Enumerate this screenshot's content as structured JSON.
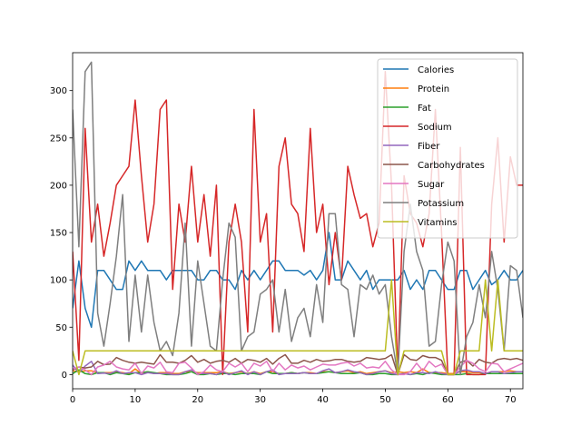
{
  "chart_data": {
    "type": "line",
    "title": "",
    "xlabel": "",
    "ylabel": "",
    "xlim": [
      0,
      72
    ],
    "ylim": [
      -15,
      340
    ],
    "xticks": [
      0,
      10,
      20,
      30,
      40,
      50,
      60,
      70
    ],
    "yticks": [
      0,
      50,
      100,
      150,
      200,
      250,
      300
    ],
    "grid": false,
    "legend_position": "top-right",
    "x": [
      0,
      1,
      2,
      3,
      4,
      5,
      6,
      7,
      8,
      9,
      10,
      11,
      12,
      13,
      14,
      15,
      16,
      17,
      18,
      19,
      20,
      21,
      22,
      23,
      24,
      25,
      26,
      27,
      28,
      29,
      30,
      31,
      32,
      33,
      34,
      35,
      36,
      37,
      38,
      39,
      40,
      41,
      42,
      43,
      44,
      45,
      46,
      47,
      48,
      49,
      50,
      51,
      52,
      53,
      54,
      55,
      56,
      57,
      58,
      59,
      60,
      61,
      62,
      63,
      64,
      65,
      66,
      67,
      68,
      69,
      70,
      71,
      72
    ],
    "series": [
      {
        "name": "Calories",
        "color": "#1f77b4",
        "values": [
          70,
          120,
          70,
          50,
          110,
          110,
          100,
          90,
          90,
          120,
          110,
          120,
          110,
          110,
          110,
          100,
          110,
          110,
          110,
          110,
          100,
          100,
          110,
          110,
          100,
          100,
          90,
          110,
          100,
          110,
          100,
          110,
          120,
          120,
          110,
          110,
          110,
          105,
          110,
          100,
          110,
          150,
          100,
          100,
          120,
          110,
          100,
          110,
          90,
          100,
          100,
          100,
          100,
          110,
          90,
          100,
          90,
          110,
          110,
          100,
          90,
          90,
          110,
          110,
          90,
          100,
          110,
          95,
          100,
          110,
          100,
          100,
          110
        ]
      },
      {
        "name": "Protein",
        "color": "#ff7f0e",
        "values": [
          4,
          3,
          4,
          4,
          2,
          2,
          2,
          3,
          2,
          1,
          6,
          1,
          3,
          1,
          2,
          2,
          1,
          1,
          3,
          3,
          2,
          2,
          2,
          2,
          3,
          1,
          2,
          3,
          1,
          3,
          1,
          3,
          3,
          1,
          1,
          2,
          1,
          2,
          2,
          1,
          3,
          3,
          2,
          3,
          4,
          2,
          3,
          1,
          2,
          3,
          4,
          2,
          3,
          2,
          3,
          2,
          6,
          2,
          2,
          2,
          1,
          1,
          3,
          3,
          2,
          2,
          1,
          3,
          3,
          3,
          4,
          3,
          3
        ]
      },
      {
        "name": "Fat",
        "color": "#2ca02c",
        "values": [
          1,
          5,
          1,
          0,
          2,
          2,
          0,
          2,
          1,
          0,
          2,
          2,
          3,
          2,
          1,
          0,
          0,
          0,
          1,
          3,
          0,
          0,
          1,
          0,
          1,
          1,
          0,
          1,
          1,
          1,
          0,
          3,
          1,
          1,
          1,
          2,
          1,
          2,
          1,
          1,
          2,
          3,
          2,
          1,
          1,
          1,
          2,
          0,
          0,
          1,
          1,
          0,
          0,
          1,
          0,
          1,
          0,
          2,
          1,
          0,
          0,
          0,
          0,
          1,
          0,
          0,
          1,
          1,
          1,
          1,
          1,
          1,
          1
        ]
      },
      {
        "name": "Sodium",
        "color": "#d62728",
        "values": [
          130,
          15,
          260,
          140,
          180,
          125,
          160,
          200,
          210,
          220,
          290,
          210,
          140,
          180,
          280,
          290,
          90,
          180,
          140,
          220,
          140,
          190,
          125,
          200,
          0,
          140,
          180,
          140,
          45,
          280,
          140,
          170,
          45,
          220,
          250,
          180,
          170,
          130,
          260,
          150,
          180,
          95,
          150,
          100,
          220,
          190,
          165,
          170,
          135,
          160,
          320,
          200,
          0,
          210,
          170,
          160,
          135,
          170,
          280,
          150,
          0,
          0,
          240,
          0,
          0,
          0,
          0,
          180,
          250,
          140,
          230,
          200,
          200
        ]
      },
      {
        "name": "Fiber",
        "color": "#9467bd",
        "values": [
          10,
          2,
          9,
          14,
          1,
          1.5,
          1,
          4,
          1,
          2,
          2,
          0,
          2,
          1,
          1,
          1,
          0,
          0,
          3,
          5,
          1,
          1,
          1,
          0,
          3,
          0,
          2,
          4,
          0,
          3,
          0,
          3,
          5,
          0,
          1,
          1,
          1,
          2,
          1,
          1,
          4,
          6,
          2,
          3,
          5,
          3,
          2,
          0,
          1,
          3,
          4,
          1,
          0,
          1,
          0,
          2,
          2,
          1,
          3,
          1,
          0,
          0,
          4,
          5,
          3,
          3,
          1,
          3,
          3,
          1,
          2,
          3,
          3
        ]
      },
      {
        "name": "Carbohydrates",
        "color": "#8c564b",
        "values": [
          5,
          8,
          7,
          8,
          14,
          10.5,
          11,
          18,
          15,
          13,
          12,
          13,
          12,
          11,
          21,
          13,
          13,
          12,
          15,
          20,
          13,
          16,
          12,
          14,
          15,
          13,
          17,
          12,
          16,
          15,
          13,
          17,
          11,
          17,
          21,
          12,
          12,
          15,
          13,
          16,
          14,
          14.5,
          16,
          16,
          14,
          13,
          14,
          18,
          17,
          16,
          17,
          21,
          0,
          21,
          16,
          15,
          20,
          18,
          18,
          15,
          0,
          0,
          13,
          15,
          9,
          16,
          13,
          12,
          16,
          17,
          16,
          17,
          15
        ]
      },
      {
        "name": "Sugar",
        "color": "#e377c2",
        "values": [
          6,
          8,
          5,
          0,
          8,
          10,
          14,
          8,
          6,
          5,
          12,
          1,
          9,
          7,
          13,
          3,
          2,
          12,
          13,
          7,
          0,
          3,
          10,
          5,
          3,
          12,
          8,
          12,
          3,
          12,
          9,
          14,
          3,
          12,
          5,
          10,
          7,
          9,
          5,
          8,
          11,
          10,
          10,
          12,
          13,
          9,
          12,
          7,
          8,
          7,
          14,
          5,
          0,
          0,
          3,
          12,
          4,
          14,
          8,
          11,
          0,
          0,
          8,
          15,
          12,
          6,
          3,
          12,
          11,
          3,
          6,
          9,
          12
        ]
      },
      {
        "name": "Potassium",
        "color": "#7f7f7f",
        "values": [
          280,
          135,
          320,
          330,
          65,
          30,
          75,
          125,
          190,
          35,
          105,
          45,
          105,
          55,
          25,
          35,
          20,
          65,
          160,
          30,
          120,
          75,
          30,
          25,
          100,
          160,
          145,
          25,
          40,
          45,
          85,
          90,
          100,
          45,
          90,
          35,
          60,
          70,
          40,
          95,
          55,
          170,
          170,
          95,
          90,
          40,
          95,
          90,
          105,
          85,
          95,
          40,
          0,
          130,
          180,
          130,
          110,
          30,
          35,
          95,
          140,
          120,
          0,
          40,
          55,
          95,
          60,
          130,
          90,
          25,
          115,
          110,
          60
        ]
      },
      {
        "name": "Vitamins",
        "color": "#bcbd22",
        "values": [
          25,
          0,
          25,
          25,
          25,
          25,
          25,
          25,
          25,
          25,
          25,
          25,
          25,
          25,
          25,
          25,
          25,
          25,
          25,
          25,
          25,
          25,
          25,
          25,
          25,
          25,
          25,
          25,
          25,
          25,
          25,
          25,
          25,
          25,
          25,
          25,
          25,
          25,
          25,
          25,
          25,
          25,
          25,
          25,
          25,
          25,
          25,
          25,
          25,
          25,
          25,
          100,
          0,
          25,
          25,
          25,
          25,
          25,
          25,
          25,
          0,
          0,
          25,
          25,
          25,
          25,
          100,
          25,
          100,
          25,
          25,
          25,
          25
        ]
      }
    ]
  }
}
